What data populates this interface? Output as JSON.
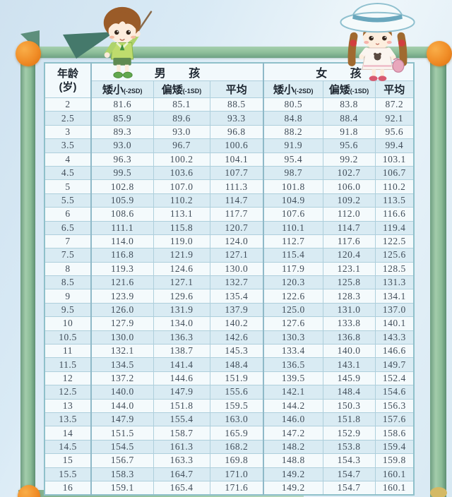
{
  "theme": {
    "sky_top": "#cfe2f0",
    "sky_bottom": "#e9f3f8",
    "pole_green": "#8cbd98",
    "pole_green_dark": "#5d8f72",
    "ball_orange": "#f08c26",
    "row_white": "#f4fafc",
    "row_alt_blue": "#d9ebf3",
    "grid_line": "#aecfdc",
    "number_text": "#414d59"
  },
  "table": {
    "age_header_line1": "年龄",
    "age_header_line2": "(岁)",
    "boys_header": "男 孩",
    "girls_header": "女 孩",
    "sub_headers": [
      {
        "label": "矮小",
        "sd": "(-2SD)"
      },
      {
        "label": "偏矮",
        "sd": "(-1SD)"
      },
      {
        "label": "平均",
        "sd": ""
      }
    ]
  },
  "chart_data": {
    "type": "table",
    "columns": [
      "年龄(岁)",
      "男孩 矮小(-2SD)",
      "男孩 偏矮(-1SD)",
      "男孩 平均",
      "女孩 矮小(-2SD)",
      "女孩 偏矮(-1SD)",
      "女孩 平均"
    ],
    "rows": [
      [
        "2",
        "81.6",
        "85.1",
        "88.5",
        "80.5",
        "83.8",
        "87.2"
      ],
      [
        "2.5",
        "85.9",
        "89.6",
        "93.3",
        "84.8",
        "88.4",
        "92.1"
      ],
      [
        "3",
        "89.3",
        "93.0",
        "96.8",
        "88.2",
        "91.8",
        "95.6"
      ],
      [
        "3.5",
        "93.0",
        "96.7",
        "100.6",
        "91.9",
        "95.6",
        "99.4"
      ],
      [
        "4",
        "96.3",
        "100.2",
        "104.1",
        "95.4",
        "99.2",
        "103.1"
      ],
      [
        "4.5",
        "99.5",
        "103.6",
        "107.7",
        "98.7",
        "102.7",
        "106.7"
      ],
      [
        "5",
        "102.8",
        "107.0",
        "111.3",
        "101.8",
        "106.0",
        "110.2"
      ],
      [
        "5.5",
        "105.9",
        "110.2",
        "114.7",
        "104.9",
        "109.2",
        "113.5"
      ],
      [
        "6",
        "108.6",
        "113.1",
        "117.7",
        "107.6",
        "112.0",
        "116.6"
      ],
      [
        "6.5",
        "111.1",
        "115.8",
        "120.7",
        "110.1",
        "114.7",
        "119.4"
      ],
      [
        "7",
        "114.0",
        "119.0",
        "124.0",
        "112.7",
        "117.6",
        "122.5"
      ],
      [
        "7.5",
        "116.8",
        "121.9",
        "127.1",
        "115.4",
        "120.4",
        "125.6"
      ],
      [
        "8",
        "119.3",
        "124.6",
        "130.0",
        "117.9",
        "123.1",
        "128.5"
      ],
      [
        "8.5",
        "121.6",
        "127.1",
        "132.7",
        "120.3",
        "125.8",
        "131.3"
      ],
      [
        "9",
        "123.9",
        "129.6",
        "135.4",
        "122.6",
        "128.3",
        "134.1"
      ],
      [
        "9.5",
        "126.0",
        "131.9",
        "137.9",
        "125.0",
        "131.0",
        "137.0"
      ],
      [
        "10",
        "127.9",
        "134.0",
        "140.2",
        "127.6",
        "133.8",
        "140.1"
      ],
      [
        "10.5",
        "130.0",
        "136.3",
        "142.6",
        "130.3",
        "136.8",
        "143.3"
      ],
      [
        "11",
        "132.1",
        "138.7",
        "145.3",
        "133.4",
        "140.0",
        "146.6"
      ],
      [
        "11.5",
        "134.5",
        "141.4",
        "148.4",
        "136.5",
        "143.1",
        "149.7"
      ],
      [
        "12",
        "137.2",
        "144.6",
        "151.9",
        "139.5",
        "145.9",
        "152.4"
      ],
      [
        "12.5",
        "140.0",
        "147.9",
        "155.6",
        "142.1",
        "148.4",
        "154.6"
      ],
      [
        "13",
        "144.0",
        "151.8",
        "159.5",
        "144.2",
        "150.3",
        "156.3"
      ],
      [
        "13.5",
        "147.9",
        "155.4",
        "163.0",
        "146.0",
        "151.8",
        "157.6"
      ],
      [
        "14",
        "151.5",
        "158.7",
        "165.9",
        "147.2",
        "152.9",
        "158.6"
      ],
      [
        "14.5",
        "154.5",
        "161.3",
        "168.2",
        "148.2",
        "153.8",
        "159.4"
      ],
      [
        "15",
        "156.7",
        "163.3",
        "169.8",
        "148.8",
        "154.3",
        "159.8"
      ],
      [
        "15.5",
        "158.3",
        "164.7",
        "171.0",
        "149.2",
        "154.7",
        "160.1"
      ],
      [
        "16",
        "159.1",
        "165.4",
        "171.6",
        "149.2",
        "154.7",
        "160.1"
      ]
    ]
  }
}
